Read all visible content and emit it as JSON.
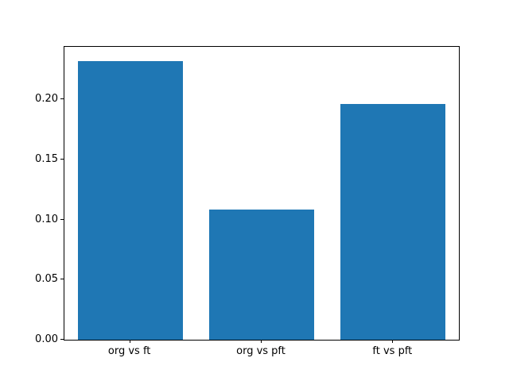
{
  "figure": {
    "background": "#ffffff",
    "axes_border_color": "#000000",
    "tick_color": "#000000",
    "text_color": "#000000"
  },
  "chart_data": {
    "type": "bar",
    "title": "",
    "xlabel": "",
    "ylabel": "",
    "categories": [
      "org vs ft",
      "org vs pft",
      "ft vs pft"
    ],
    "values": [
      0.232,
      0.108,
      0.196
    ],
    "bar_color": "#1f77b4",
    "bar_width_fraction": 0.8,
    "ylim": [
      0,
      0.2437
    ],
    "yticks": [
      {
        "value": 0.0,
        "label": "0.00"
      },
      {
        "value": 0.05,
        "label": "0.05"
      },
      {
        "value": 0.1,
        "label": "0.10"
      },
      {
        "value": 0.15,
        "label": "0.15"
      },
      {
        "value": 0.2,
        "label": "0.20"
      }
    ],
    "grid": false,
    "legend": false
  }
}
